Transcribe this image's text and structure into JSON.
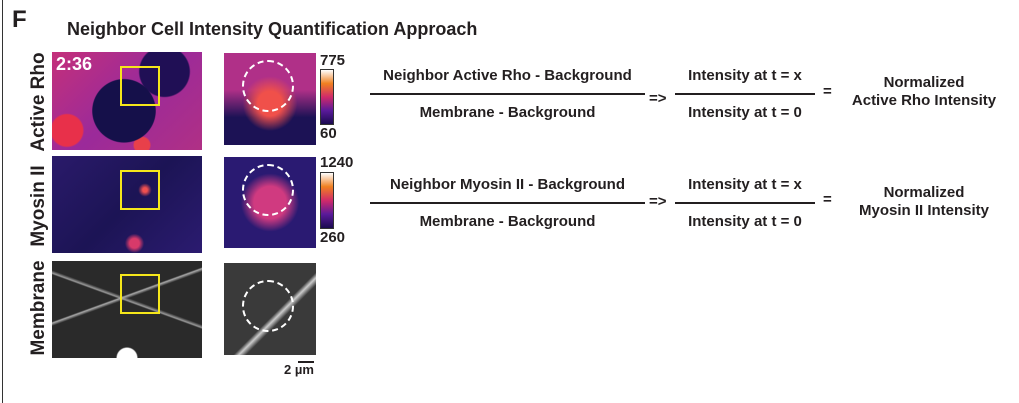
{
  "panel_label": "F",
  "title": "Neighbor Cell Intensity Quantification Approach",
  "rows": [
    {
      "label": "Active Rho",
      "timestamp": "2:36",
      "colorbar_max": "775",
      "colorbar_min": "60"
    },
    {
      "label": "Myosin II",
      "colorbar_max": "1240",
      "colorbar_min": "260"
    },
    {
      "label": "Membrane"
    }
  ],
  "scale_bar": "2 µm",
  "equations": [
    {
      "numerator": "Neighbor Active Rho - Background",
      "denominator": "Membrane - Background",
      "arrow": "=>",
      "ratio_numerator": "Intensity at t = x",
      "ratio_denominator": "Intensity at t = 0",
      "equals": "=",
      "result_line1": "Normalized",
      "result_line2": "Active Rho Intensity"
    },
    {
      "numerator": "Neighbor Myosin II - Background",
      "denominator": "Membrane - Background",
      "arrow": "=>",
      "ratio_numerator": "Intensity at t = x",
      "ratio_denominator": "Intensity at t = 0",
      "equals": "=",
      "result_line1": "Normalized",
      "result_line2": "Myosin II Intensity"
    }
  ],
  "colors": {
    "roi_box": "#f5e61a",
    "text": "#231f20"
  }
}
